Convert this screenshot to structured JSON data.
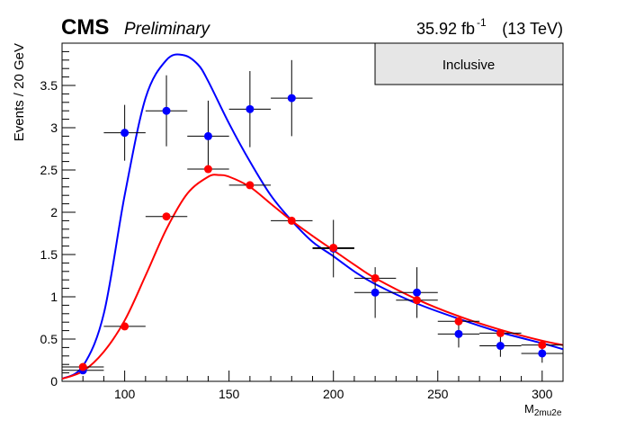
{
  "header": {
    "experiment": "CMS",
    "status": "Preliminary",
    "lumi_value": "35.92 fb",
    "lumi_exp": "-1",
    "energy": "(13 TeV)"
  },
  "legend": {
    "label": "Inclusive"
  },
  "colors": {
    "blue": "#0000ff",
    "red": "#ff0000",
    "legend_fill": "#e6e6e6"
  },
  "chart_data": {
    "type": "scatter",
    "title": "",
    "xlabel": "M",
    "xlabel_sub": "2mu2e",
    "ylabel": "Events / 20 GeV",
    "xlim": [
      70,
      310
    ],
    "ylim": [
      0,
      4.0
    ],
    "x_ticks": [
      100,
      150,
      200,
      250,
      300
    ],
    "y_ticks": [
      0,
      0.5,
      1,
      1.5,
      2,
      2.5,
      3,
      3.5
    ],
    "y_tick_labels": [
      "0",
      "0.5",
      "1",
      "1.5",
      "2",
      "2.5",
      "3",
      "3.5"
    ],
    "series": [
      {
        "color": "blue",
        "points": [
          {
            "x": 80,
            "y": 0.13,
            "xerr": 10,
            "yerr": [
              0.0,
              0.0
            ]
          },
          {
            "x": 100,
            "y": 2.94,
            "xerr": 10,
            "yerr": [
              0.33,
              0.33
            ]
          },
          {
            "x": 120,
            "y": 3.2,
            "xerr": 10,
            "yerr": [
              0.42,
              0.42
            ]
          },
          {
            "x": 140,
            "y": 2.9,
            "xerr": 10,
            "yerr": [
              0.42,
              0.42
            ]
          },
          {
            "x": 160,
            "y": 3.22,
            "xerr": 10,
            "yerr": [
              0.45,
              0.45
            ]
          },
          {
            "x": 180,
            "y": 3.35,
            "xerr": 10,
            "yerr": [
              0.45,
              0.45
            ]
          },
          {
            "x": 200,
            "y": 1.57,
            "xerr": 10,
            "yerr": [
              0.34,
              0.34
            ]
          },
          {
            "x": 220,
            "y": 1.05,
            "xerr": 10,
            "yerr": [
              0.3,
              0.3
            ]
          },
          {
            "x": 240,
            "y": 1.05,
            "xerr": 10,
            "yerr": [
              0.3,
              0.3
            ]
          },
          {
            "x": 260,
            "y": 0.56,
            "xerr": 10,
            "yerr": [
              0.16,
              0.16
            ]
          },
          {
            "x": 280,
            "y": 0.42,
            "xerr": 10,
            "yerr": [
              0.13,
              0.13
            ]
          },
          {
            "x": 300,
            "y": 0.33,
            "xerr": 10,
            "yerr": [
              0.11,
              0.11
            ]
          }
        ],
        "curve": [
          [
            70,
            0.03
          ],
          [
            80,
            0.18
          ],
          [
            90,
            0.8
          ],
          [
            100,
            2.2
          ],
          [
            110,
            3.35
          ],
          [
            120,
            3.8
          ],
          [
            128,
            3.86
          ],
          [
            135,
            3.75
          ],
          [
            140,
            3.55
          ],
          [
            150,
            3.05
          ],
          [
            160,
            2.6
          ],
          [
            170,
            2.2
          ],
          [
            180,
            1.9
          ],
          [
            190,
            1.65
          ],
          [
            200,
            1.48
          ],
          [
            210,
            1.3
          ],
          [
            220,
            1.15
          ],
          [
            240,
            0.92
          ],
          [
            260,
            0.74
          ],
          [
            280,
            0.58
          ],
          [
            300,
            0.45
          ],
          [
            310,
            0.38
          ]
        ]
      },
      {
        "color": "red",
        "points": [
          {
            "x": 80,
            "y": 0.17,
            "xerr": 10,
            "yerr": [
              0.02,
              0.02
            ]
          },
          {
            "x": 100,
            "y": 0.65,
            "xerr": 10,
            "yerr": [
              0.0,
              0.0
            ]
          },
          {
            "x": 120,
            "y": 1.95,
            "xerr": 10,
            "yerr": [
              0.03,
              0.03
            ]
          },
          {
            "x": 140,
            "y": 2.51,
            "xerr": 10,
            "yerr": [
              0.04,
              0.04
            ]
          },
          {
            "x": 160,
            "y": 2.32,
            "xerr": 10,
            "yerr": [
              0.04,
              0.04
            ]
          },
          {
            "x": 180,
            "y": 1.9,
            "xerr": 10,
            "yerr": [
              0.03,
              0.03
            ]
          },
          {
            "x": 200,
            "y": 1.58,
            "xerr": 10,
            "yerr": [
              0.03,
              0.03
            ]
          },
          {
            "x": 220,
            "y": 1.22,
            "xerr": 10,
            "yerr": [
              0.02,
              0.02
            ]
          },
          {
            "x": 240,
            "y": 0.96,
            "xerr": 10,
            "yerr": [
              0.02,
              0.02
            ]
          },
          {
            "x": 260,
            "y": 0.71,
            "xerr": 10,
            "yerr": [
              0.02,
              0.02
            ]
          },
          {
            "x": 280,
            "y": 0.57,
            "xerr": 10,
            "yerr": [
              0.02,
              0.02
            ]
          },
          {
            "x": 300,
            "y": 0.43,
            "xerr": 10,
            "yerr": [
              0.02,
              0.02
            ]
          }
        ],
        "curve": [
          [
            70,
            0.03
          ],
          [
            80,
            0.12
          ],
          [
            90,
            0.35
          ],
          [
            100,
            0.72
          ],
          [
            110,
            1.25
          ],
          [
            120,
            1.8
          ],
          [
            130,
            2.22
          ],
          [
            140,
            2.42
          ],
          [
            145,
            2.44
          ],
          [
            150,
            2.42
          ],
          [
            160,
            2.3
          ],
          [
            170,
            2.1
          ],
          [
            180,
            1.9
          ],
          [
            190,
            1.72
          ],
          [
            200,
            1.55
          ],
          [
            210,
            1.38
          ],
          [
            220,
            1.22
          ],
          [
            240,
            0.97
          ],
          [
            260,
            0.77
          ],
          [
            280,
            0.61
          ],
          [
            300,
            0.48
          ],
          [
            310,
            0.43
          ]
        ]
      }
    ]
  }
}
